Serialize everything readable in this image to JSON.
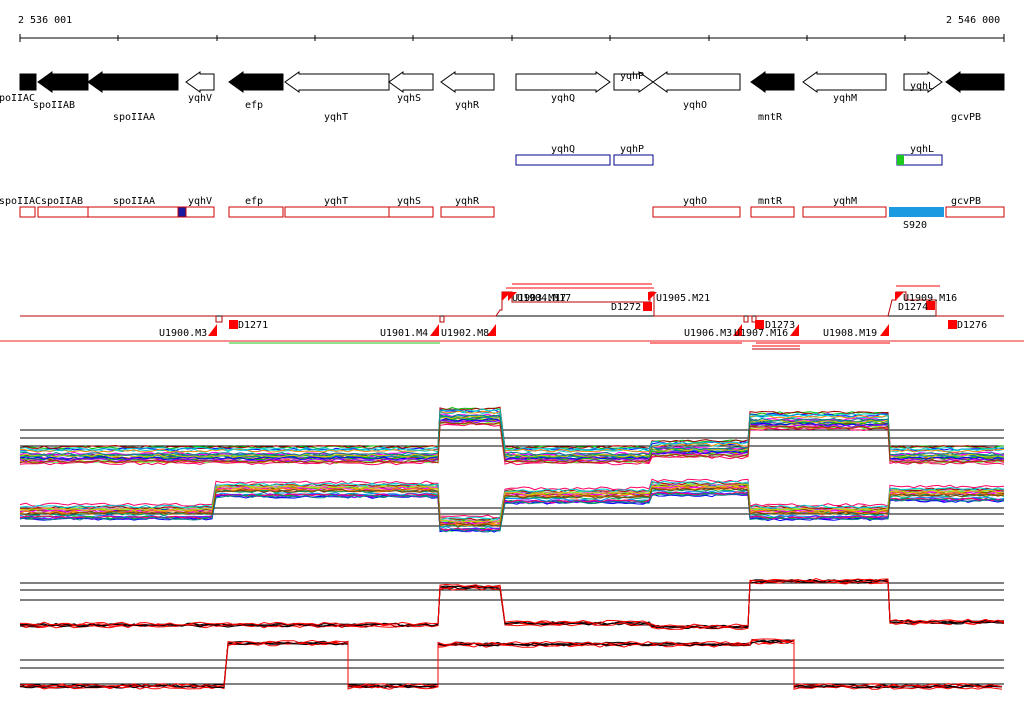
{
  "scale": {
    "start_label": "2 536 001",
    "end_label": "2 546 000"
  },
  "genes_top": [
    {
      "name": "spoIIAC",
      "strand": "-",
      "filled": true
    },
    {
      "name": "spoIIAB",
      "strand": "-",
      "filled": true
    },
    {
      "name": "spoIIAA",
      "strand": "-",
      "filled": true
    },
    {
      "name": "yqhV",
      "strand": "-",
      "filled": false
    },
    {
      "name": "efp",
      "strand": "-",
      "filled": true
    },
    {
      "name": "yqhT",
      "strand": "-",
      "filled": false
    },
    {
      "name": "yqhS",
      "strand": "-",
      "filled": false
    },
    {
      "name": "yqhR",
      "strand": "-",
      "filled": false
    },
    {
      "name": "yqhQ",
      "strand": "+",
      "filled": false
    },
    {
      "name": "yqhP",
      "strand": "+",
      "filled": false
    },
    {
      "name": "yqhO",
      "strand": "-",
      "filled": false
    },
    {
      "name": "mntR",
      "strand": "-",
      "filled": true
    },
    {
      "name": "yqhM",
      "strand": "-",
      "filled": false
    },
    {
      "name": "yqhL",
      "strand": "+",
      "filled": false
    },
    {
      "name": "gcvPB",
      "strand": "-",
      "filled": true
    }
  ],
  "blue_boxes": [
    {
      "name": "yqhQ"
    },
    {
      "name": "yqhP"
    },
    {
      "name": "yqhL"
    }
  ],
  "red_boxes": [
    {
      "name": "spoIIAC"
    },
    {
      "name": "spoIIAB"
    },
    {
      "name": "spoIIAA"
    },
    {
      "name": "yqhV"
    },
    {
      "name": "efp"
    },
    {
      "name": "yqhT"
    },
    {
      "name": "yqhS"
    },
    {
      "name": "yqhR"
    },
    {
      "name": "yqhO"
    },
    {
      "name": "mntR"
    },
    {
      "name": "yqhM"
    },
    {
      "name": "gcvPB"
    }
  ],
  "s_feature": {
    "name": "S920",
    "color": "#1a9ae0"
  },
  "segment_labels": [
    {
      "name": "U1900.M3"
    },
    {
      "name": "D1271"
    },
    {
      "name": "U1901.M4"
    },
    {
      "name": "U1902.M8"
    },
    {
      "name": "U1903.M17"
    },
    {
      "name": "U1904.M17"
    },
    {
      "name": "D1272"
    },
    {
      "name": "U1905.M21"
    },
    {
      "name": "U1906.M3"
    },
    {
      "name": "U1907.M16"
    },
    {
      "name": "D1273"
    },
    {
      "name": "U1908.M19"
    },
    {
      "name": "U1909.M16"
    },
    {
      "name": "D1274"
    },
    {
      "name": "D1276"
    }
  ],
  "colors": {
    "gene_outline": "#cc0000",
    "orf_outline": "#00008b",
    "segment": "#ff0000",
    "green": "#1ec81e"
  },
  "expression_tracks": [
    {
      "name": "track-1",
      "levels": [
        0.18,
        0.18,
        0.82,
        0.18,
        0.28,
        0.75,
        0.18
      ]
    },
    {
      "name": "track-2",
      "levels": [
        0.45,
        0.82,
        0.25,
        0.72,
        0.85,
        0.45,
        0.75
      ]
    },
    {
      "name": "track-3",
      "levels": [
        0.15,
        0.15,
        0.78,
        0.18,
        0.12,
        0.88,
        0.2
      ]
    },
    {
      "name": "track-4",
      "levels": [
        0.1,
        0.82,
        0.1,
        0.8,
        0.85,
        0.1,
        0.1
      ]
    }
  ]
}
